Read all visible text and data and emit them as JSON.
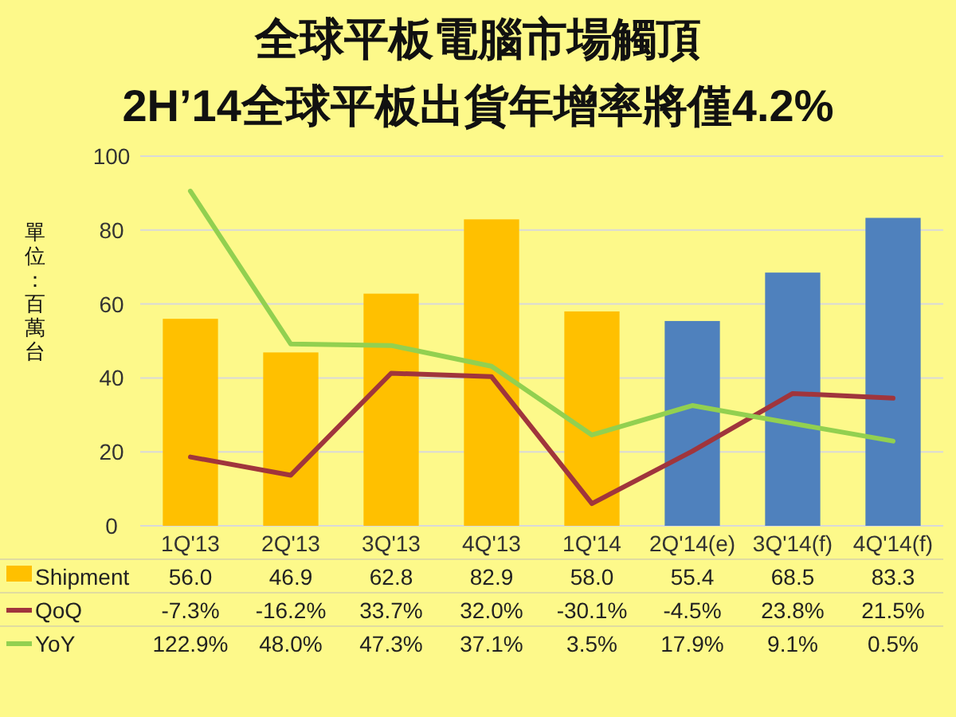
{
  "chart_data": {
    "type": "bar",
    "title": "全球平板電腦市場觸頂",
    "subtitle": "2H’14全球平板出貨年增率將僅4.2%",
    "ylabel": "單位：百萬台",
    "categories": [
      "1Q'13",
      "2Q'13",
      "3Q'13",
      "4Q'13",
      "1Q'14",
      "2Q'14(e)",
      "3Q'14(f)",
      "4Q'14(f)"
    ],
    "series": [
      {
        "name": "Shipment",
        "color": "#ffc000",
        "colors": [
          "#ffc000",
          "#ffc000",
          "#ffc000",
          "#ffc000",
          "#ffc000",
          "#4f81bd",
          "#4f81bd",
          "#4f81bd"
        ],
        "values": [
          56.0,
          46.9,
          62.8,
          82.9,
          58.0,
          55.4,
          68.5,
          83.3
        ],
        "value_labels": [
          "56.0",
          "46.9",
          "62.8",
          "82.9",
          "58.0",
          "55.4",
          "68.5",
          "83.3"
        ]
      },
      {
        "name": "QoQ",
        "type": "line",
        "axis": "y2",
        "color": "#a0353c",
        "values": [
          -7.3,
          -16.2,
          33.7,
          32.0,
          -30.1,
          -4.5,
          23.8,
          21.5
        ],
        "value_labels": [
          "-7.3%",
          "-16.2%",
          "33.7%",
          "32.0%",
          "-30.1%",
          "-4.5%",
          "23.8%",
          "21.5%"
        ]
      },
      {
        "name": "YoY",
        "type": "line",
        "axis": "y2",
        "color": "#92d050",
        "values": [
          122.9,
          48.0,
          47.3,
          37.1,
          3.5,
          17.9,
          9.1,
          0.5
        ],
        "value_labels": [
          "122.9%",
          "48.0%",
          "47.3%",
          "37.1%",
          "3.5%",
          "17.9%",
          "9.1%",
          "0.5%"
        ]
      }
    ],
    "ylim": [
      0,
      100
    ],
    "yticks": [
      0,
      20,
      40,
      60,
      80,
      100
    ],
    "y2lim": [
      -41,
      140
    ],
    "grid": "y",
    "legend": "bottom"
  }
}
